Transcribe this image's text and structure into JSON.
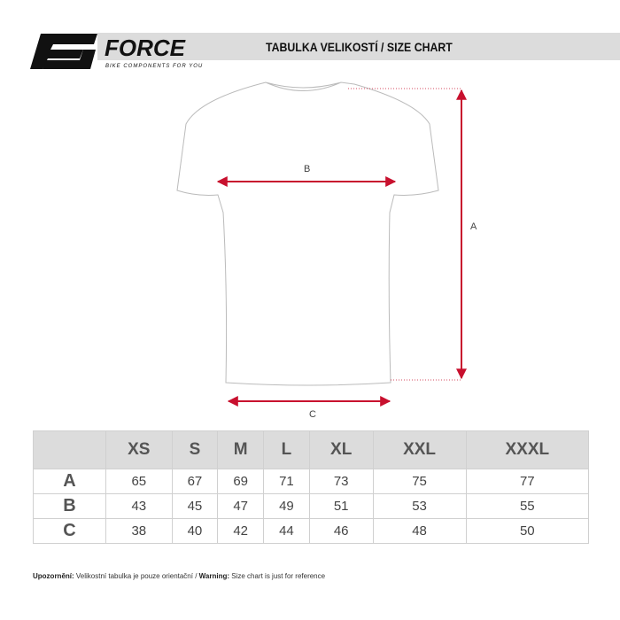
{
  "header": {
    "title": "TABULKA VELIKOSTÍ / SIZE CHART",
    "brand": "FORCE",
    "tagline": "BIKE COMPONENTS FOR YOU"
  },
  "diagram": {
    "label_a": "A",
    "label_b": "B",
    "label_c": "C",
    "arrow_color": "#c8102e"
  },
  "table": {
    "columns": [
      "XS",
      "S",
      "M",
      "L",
      "XL",
      "XXL",
      "XXXL"
    ],
    "rows": [
      {
        "label": "A",
        "values": [
          "65",
          "67",
          "69",
          "71",
          "73",
          "75",
          "77"
        ]
      },
      {
        "label": "B",
        "values": [
          "43",
          "45",
          "47",
          "49",
          "51",
          "53",
          "55"
        ]
      },
      {
        "label": "C",
        "values": [
          "38",
          "40",
          "42",
          "44",
          "46",
          "48",
          "50"
        ]
      }
    ]
  },
  "footer": {
    "warning_cz_label": "Upozornění:",
    "warning_cz": " Velikostní tabulka je pouze orientační / ",
    "warning_en_label": "Warning:",
    "warning_en": " Size chart is just for reference"
  }
}
